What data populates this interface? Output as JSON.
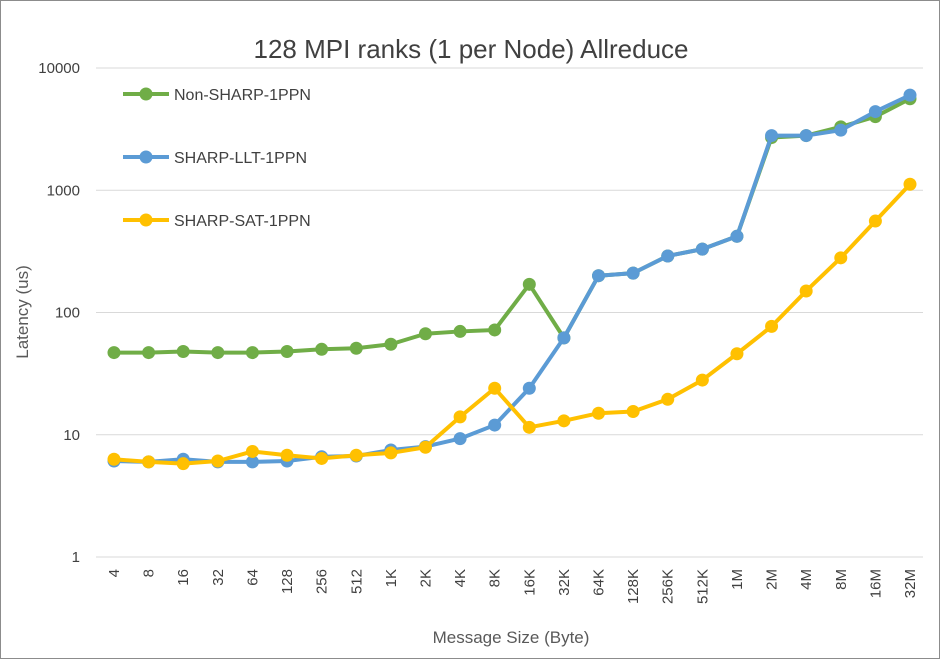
{
  "chart_data": {
    "type": "line",
    "title": "128 MPI ranks (1 per Node) Allreduce",
    "xlabel": "Message Size (Byte)",
    "ylabel": "Latency (us)",
    "yscale": "log",
    "ylim": [
      1,
      10000
    ],
    "yticks": [
      "1",
      "10",
      "100",
      "1000",
      "10000"
    ],
    "grid": true,
    "legend_position": "top-left",
    "categories": [
      "4",
      "8",
      "16",
      "32",
      "64",
      "128",
      "256",
      "512",
      "1K",
      "2K",
      "4K",
      "8K",
      "16K",
      "32K",
      "64K",
      "128K",
      "256K",
      "512K",
      "1M",
      "2M",
      "4M",
      "8M",
      "16M",
      "32M"
    ],
    "series": [
      {
        "name": "Non-SHARP-1PPN",
        "color": "#70ad47",
        "values": [
          47,
          47,
          48,
          47,
          47,
          48,
          50,
          51,
          55,
          67,
          70,
          72,
          170,
          62,
          200,
          210,
          290,
          330,
          420,
          2700,
          2800,
          3300,
          4000,
          5600
        ]
      },
      {
        "name": "SHARP-LLT-1PPN",
        "color": "#5b9bd5",
        "values": [
          6.1,
          6.0,
          6.3,
          6.0,
          6.0,
          6.1,
          6.6,
          6.7,
          7.5,
          8.0,
          9.3,
          12,
          24,
          62,
          200,
          210,
          290,
          330,
          420,
          2800,
          2800,
          3100,
          4400,
          6000
        ]
      },
      {
        "name": "SHARP-SAT-1PPN",
        "color": "#ffc000",
        "values": [
          6.3,
          6.0,
          5.8,
          6.1,
          7.3,
          6.8,
          6.4,
          6.8,
          7.1,
          7.9,
          14,
          24,
          11.5,
          13,
          15,
          15.5,
          19.5,
          28,
          46,
          77,
          150,
          280,
          560,
          1120
        ]
      }
    ]
  }
}
